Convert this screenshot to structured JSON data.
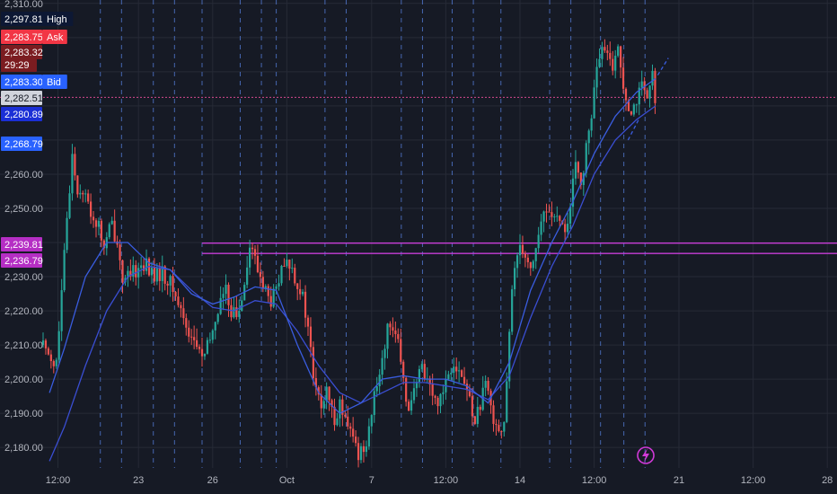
{
  "chart_data": {
    "type": "candlestick",
    "title": "",
    "xlabel": "",
    "ylabel": "",
    "ylim": [
      2174,
      2311
    ],
    "grid": true,
    "y_ticks": [
      {
        "value": 2180,
        "label": "2,180.00"
      },
      {
        "value": 2190,
        "label": "2,190.00"
      },
      {
        "value": 2200,
        "label": "2,200.00"
      },
      {
        "value": 2210,
        "label": "2,210.00"
      },
      {
        "value": 2220,
        "label": "2,220.00"
      },
      {
        "value": 2230,
        "label": "2,230.00"
      },
      {
        "value": 2250,
        "label": "2,250.00"
      },
      {
        "value": 2260,
        "label": "2,260.00"
      },
      {
        "value": 2310,
        "label": "2,310.00"
      }
    ],
    "x_ticks": [
      {
        "t": 0.7,
        "label": "12:00"
      },
      {
        "t": 4.5,
        "label": "23"
      },
      {
        "t": 8.0,
        "label": "26"
      },
      {
        "t": 11.5,
        "label": "Oct"
      },
      {
        "t": 15.5,
        "label": "7"
      },
      {
        "t": 19.0,
        "label": "12:00"
      },
      {
        "t": 22.5,
        "label": "14"
      },
      {
        "t": 26.0,
        "label": "12:00"
      },
      {
        "t": 30.0,
        "label": "21"
      },
      {
        "t": 33.5,
        "label": "12:00"
      },
      {
        "t": 37.0,
        "label": "28"
      }
    ],
    "session_lines": [
      2.7,
      3.7,
      5.2,
      6.2,
      7.5,
      9.3,
      10.3,
      11.0,
      13.3,
      14.3,
      16.9,
      17.9,
      19.3,
      20.3,
      21.6,
      23.9,
      24.9,
      26.3,
      27.4,
      28.4
    ],
    "close_path": [
      [
        0.0,
        2210
      ],
      [
        0.3,
        2208
      ],
      [
        0.6,
        2203
      ],
      [
        0.8,
        2218
      ],
      [
        1.0,
        2236
      ],
      [
        1.2,
        2252
      ],
      [
        1.4,
        2268
      ],
      [
        1.6,
        2254
      ],
      [
        1.8,
        2257
      ],
      [
        2.0,
        2253
      ],
      [
        2.3,
        2248
      ],
      [
        2.6,
        2245
      ],
      [
        2.9,
        2238
      ],
      [
        3.2,
        2246
      ],
      [
        3.5,
        2240
      ],
      [
        3.8,
        2228
      ],
      [
        4.1,
        2230
      ],
      [
        4.4,
        2232
      ],
      [
        4.8,
        2234
      ],
      [
        5.2,
        2230
      ],
      [
        5.6,
        2231
      ],
      [
        6.0,
        2228
      ],
      [
        6.4,
        2222
      ],
      [
        6.8,
        2215
      ],
      [
        7.2,
        2210
      ],
      [
        7.6,
        2206
      ],
      [
        8.0,
        2214
      ],
      [
        8.3,
        2222
      ],
      [
        8.6,
        2226
      ],
      [
        8.9,
        2220
      ],
      [
        9.2,
        2218
      ],
      [
        9.5,
        2230
      ],
      [
        9.8,
        2240
      ],
      [
        10.1,
        2232
      ],
      [
        10.4,
        2228
      ],
      [
        10.7,
        2222
      ],
      [
        11.0,
        2226
      ],
      [
        11.3,
        2232
      ],
      [
        11.6,
        2234
      ],
      [
        11.9,
        2230
      ],
      [
        12.2,
        2225
      ],
      [
        12.5,
        2215
      ],
      [
        12.8,
        2198
      ],
      [
        13.1,
        2192
      ],
      [
        13.4,
        2196
      ],
      [
        13.7,
        2188
      ],
      [
        14.0,
        2193
      ],
      [
        14.3,
        2186
      ],
      [
        14.6,
        2183
      ],
      [
        14.9,
        2178
      ],
      [
        15.2,
        2181
      ],
      [
        15.5,
        2190
      ],
      [
        15.8,
        2200
      ],
      [
        16.1,
        2210
      ],
      [
        16.4,
        2218
      ],
      [
        16.7,
        2212
      ],
      [
        17.0,
        2198
      ],
      [
        17.3,
        2192
      ],
      [
        17.6,
        2198
      ],
      [
        17.9,
        2204
      ],
      [
        18.2,
        2199
      ],
      [
        18.5,
        2193
      ],
      [
        18.8,
        2196
      ],
      [
        19.1,
        2202
      ],
      [
        19.4,
        2206
      ],
      [
        19.7,
        2201
      ],
      [
        20.0,
        2197
      ],
      [
        20.3,
        2188
      ],
      [
        20.6,
        2192
      ],
      [
        20.9,
        2198
      ],
      [
        21.2,
        2190
      ],
      [
        21.5,
        2186
      ],
      [
        21.7,
        2184
      ],
      [
        21.9,
        2200
      ],
      [
        22.1,
        2224
      ],
      [
        22.3,
        2236
      ],
      [
        22.5,
        2240
      ],
      [
        22.7,
        2238
      ],
      [
        23.0,
        2232
      ],
      [
        23.3,
        2240
      ],
      [
        23.6,
        2248
      ],
      [
        23.9,
        2250
      ],
      [
        24.2,
        2246
      ],
      [
        24.5,
        2244
      ],
      [
        24.8,
        2246
      ],
      [
        25.1,
        2262
      ],
      [
        25.4,
        2258
      ],
      [
        25.7,
        2270
      ],
      [
        26.0,
        2284
      ],
      [
        26.2,
        2294
      ],
      [
        26.5,
        2296
      ],
      [
        26.8,
        2291
      ],
      [
        27.1,
        2297
      ],
      [
        27.4,
        2286
      ],
      [
        27.7,
        2279
      ],
      [
        28.0,
        2282
      ],
      [
        28.3,
        2286
      ],
      [
        28.5,
        2280
      ],
      [
        28.7,
        2290
      ],
      [
        28.9,
        2282
      ]
    ],
    "series": [
      {
        "name": "",
        "color": "#3a4ed2",
        "points": [
          [
            0.3,
            2176
          ],
          [
            1.0,
            2186
          ],
          [
            2.0,
            2204
          ],
          [
            3.0,
            2220
          ],
          [
            4.0,
            2230
          ],
          [
            5.0,
            2233
          ],
          [
            6.0,
            2232
          ],
          [
            7.0,
            2226
          ],
          [
            8.0,
            2221
          ],
          [
            9.0,
            2220
          ],
          [
            10.0,
            2223
          ],
          [
            11.0,
            2222
          ],
          [
            12.0,
            2214
          ],
          [
            13.0,
            2204
          ],
          [
            14.0,
            2196
          ],
          [
            15.0,
            2193
          ],
          [
            16.0,
            2196
          ],
          [
            17.0,
            2199
          ],
          [
            18.0,
            2199
          ],
          [
            19.0,
            2198
          ],
          [
            20.0,
            2197
          ],
          [
            21.0,
            2194
          ],
          [
            22.0,
            2201
          ],
          [
            23.0,
            2218
          ],
          [
            24.0,
            2233
          ],
          [
            25.0,
            2245
          ],
          [
            26.0,
            2260
          ],
          [
            27.0,
            2270
          ],
          [
            28.0,
            2276
          ],
          [
            28.9,
            2280
          ]
        ]
      },
      {
        "name": "",
        "color": "#3a5de0",
        "points": [
          [
            0.3,
            2196
          ],
          [
            1.0,
            2209
          ],
          [
            2.0,
            2230
          ],
          [
            3.0,
            2240
          ],
          [
            4.0,
            2240
          ],
          [
            5.0,
            2234
          ],
          [
            6.0,
            2232
          ],
          [
            7.0,
            2225
          ],
          [
            8.0,
            2222
          ],
          [
            9.0,
            2224
          ],
          [
            10.0,
            2227
          ],
          [
            11.0,
            2226
          ],
          [
            12.0,
            2210
          ],
          [
            13.0,
            2196
          ],
          [
            14.0,
            2190
          ],
          [
            15.0,
            2193
          ],
          [
            16.0,
            2200
          ],
          [
            17.0,
            2201
          ],
          [
            18.0,
            2200
          ],
          [
            19.0,
            2200
          ],
          [
            20.0,
            2198
          ],
          [
            21.0,
            2193
          ],
          [
            22.0,
            2205
          ],
          [
            23.0,
            2226
          ],
          [
            24.0,
            2240
          ],
          [
            25.0,
            2252
          ],
          [
            26.0,
            2266
          ],
          [
            27.0,
            2277
          ],
          [
            28.0,
            2284
          ],
          [
            28.9,
            2288
          ]
        ]
      }
    ],
    "horizontal_lines": [
      {
        "value": 2239.81,
        "color": "#c63dd6"
      },
      {
        "value": 2236.79,
        "color": "#c63dd6"
      },
      {
        "value": 2282.51,
        "color": "#d4488e"
      }
    ],
    "price_tags": [
      {
        "label": "2,297.81",
        "value": 2297.81,
        "bg": "#0d1834",
        "fg": "#ffffff",
        "tag": "High"
      },
      {
        "label": "2,283.75",
        "value": 2283.75,
        "bg": "#f23645",
        "fg": "#ffffff",
        "tag": "Ask"
      },
      {
        "label": "2,283.32",
        "value": 2283.32,
        "bg": "#7b1c20",
        "fg": "#ffffff",
        "tag": ""
      },
      {
        "label": "29:29",
        "value": 2283.32,
        "bg": "#7b1c20",
        "fg": "#ffffff",
        "tag": ""
      },
      {
        "label": "2,283.30",
        "value": 2283.3,
        "bg": "#2962ff",
        "fg": "#ffffff",
        "tag": "Bid"
      },
      {
        "label": "2,282.51",
        "value": 2282.51,
        "bg": "#d1d4dc",
        "fg": "#131722",
        "tag": ""
      },
      {
        "label": "2,280.89",
        "value": 2280.89,
        "bg": "#1b2fd6",
        "fg": "#ffffff",
        "tag": ""
      },
      {
        "label": "2,268.79",
        "value": 2268.79,
        "bg": "#2962ff",
        "fg": "#ffffff",
        "tag": ""
      },
      {
        "label": "2,239.81",
        "value": 2239.81,
        "bg": "#b52ec4",
        "fg": "#ffffff",
        "tag": ""
      },
      {
        "label": "2,236.79",
        "value": 2236.79,
        "bg": "#b52ec4",
        "fg": "#ffffff",
        "tag": ""
      }
    ],
    "colors": {
      "up": "#26a69a",
      "down": "#ef5350",
      "background": "#161a25",
      "grid": "#262a36",
      "text": "#d1d4dc",
      "session": "#4f74c8"
    }
  },
  "icons": {
    "flash": "lightning-icon"
  }
}
